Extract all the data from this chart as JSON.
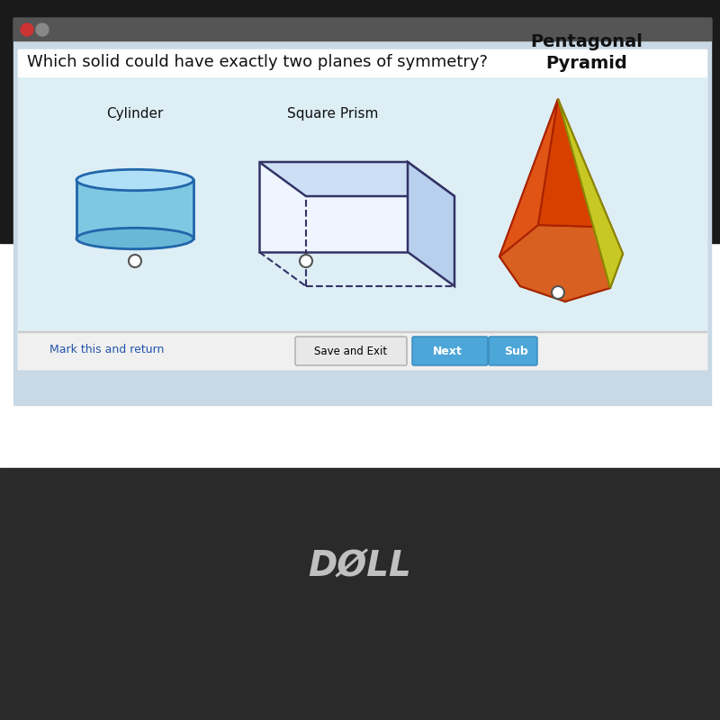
{
  "title": "Which solid could have exactly two planes of symmetry?",
  "title_fontsize": 13,
  "bg_color": "#d8e8f0",
  "panel_bg": "#ffffff",
  "cylinder_label": "Cylinder",
  "prism_label": "Square Prism",
  "pyramid_label": "Pentagonal\nPyramid",
  "shape_label_fontsize": 11,
  "bottom_bar_color": "#f0f0f0",
  "button_save_color": "#e0e0e0",
  "button_next_color": "#4da6d8",
  "button_sub_color": "#4da6d8",
  "link_color": "#2255aa",
  "laptop_dark": "#2a2a2a",
  "screen_bg": "#c8d8e5",
  "content_bg": "#ddeef5",
  "answer_radio_color": "#555555",
  "dell_text": "DØLL",
  "mark_return_text": "Mark this and return",
  "save_exit_text": "Save and Exit",
  "next_text": "Next",
  "sub_text": "Sub"
}
